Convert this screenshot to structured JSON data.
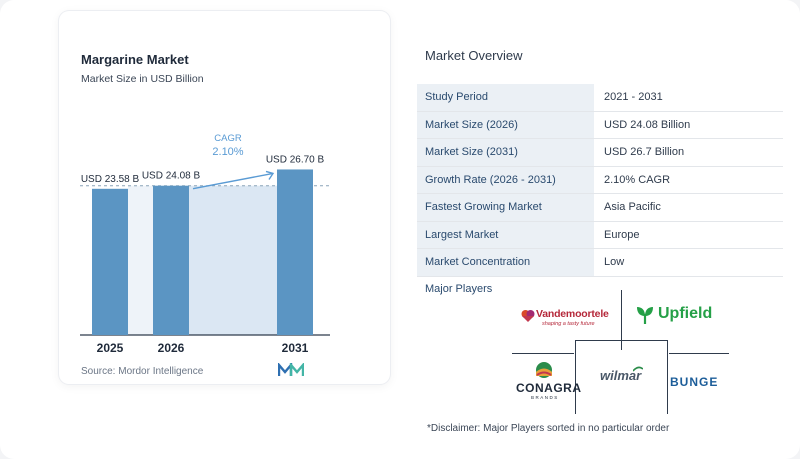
{
  "colors": {
    "bar": "#5b95c3",
    "band": "#dbe7f3",
    "dashed": "#8aa3b8",
    "cagr_text": "#5a9bd4",
    "axis": "#2f3b4c",
    "label_bg": "#ebf0f5"
  },
  "chart_data": {
    "type": "bar",
    "title": "Margarine Market",
    "subtitle": "Market Size in USD Billion",
    "categories": [
      "2025",
      "2026",
      "2031"
    ],
    "values": [
      23.58,
      24.08,
      26.7
    ],
    "value_labels": [
      "USD 23.58 B",
      "USD 24.08 B",
      "USD 26.70 B"
    ],
    "cagr": {
      "label": "CAGR",
      "value": "2.10%"
    },
    "source": "Source:  Mordor Intelligence"
  },
  "overview": {
    "title": "Market Overview",
    "rows": [
      {
        "label": "Study Period",
        "value": "2021 - 2031"
      },
      {
        "label": "Market Size (2026)",
        "value": "USD 24.08 Billion"
      },
      {
        "label": "Market Size (2031)",
        "value": "USD 26.7 Billion"
      },
      {
        "label": "Growth Rate (2026 - 2031)",
        "value": "2.10% CAGR"
      },
      {
        "label": "Fastest Growing Market",
        "value": "Asia Pacific"
      },
      {
        "label": "Largest Market",
        "value": "Europe"
      },
      {
        "label": "Market Concentration",
        "value": "Low"
      }
    ]
  },
  "players": {
    "title": "Major Players",
    "logos": {
      "vandemoortele": "Vandemoortele",
      "vandemoortele_tagline": "shaping a tasty future",
      "upfield": "Upfield",
      "conagra": "CONAGRA",
      "conagra_sub": "BRANDS",
      "wilmar": "wilmar",
      "bunge": "BUNGE"
    }
  },
  "disclaimer": "*Disclaimer: Major Players sorted in no particular order"
}
